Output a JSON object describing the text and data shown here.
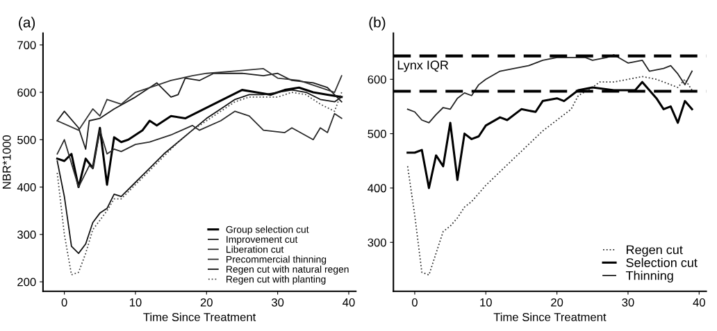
{
  "chart_data": [
    {
      "type": "line",
      "title": "(a)",
      "xlabel": "Time Since Treatment",
      "ylabel": "NBR*1000",
      "xlim": [
        -3,
        41
      ],
      "xticks": [
        0,
        10,
        20,
        30,
        40
      ],
      "ylim": [
        180,
        725
      ],
      "yticks": [
        200,
        300,
        400,
        500,
        600,
        700
      ],
      "grid": false,
      "legend": "bottom right",
      "marker": "none",
      "series": [
        {
          "name": "Group selection cut",
          "color": "#000000",
          "line_style": "solid",
          "x": [
            -1,
            0,
            1,
            2,
            3,
            4,
            5,
            6,
            7,
            8,
            9,
            11,
            12,
            13,
            15,
            17,
            19,
            21,
            23,
            25,
            27,
            29,
            31,
            33,
            35,
            37,
            39
          ],
          "values": [
            460,
            455,
            470,
            400,
            460,
            440,
            525,
            405,
            505,
            495,
            500,
            520,
            540,
            530,
            550,
            545,
            560,
            575,
            590,
            605,
            600,
            595,
            605,
            610,
            600,
            595,
            590
          ]
        },
        {
          "name": "Improvement cut",
          "color": "#1a1a1a",
          "line_style": "solid",
          "x": [
            -1,
            0,
            2,
            3,
            3.5,
            5,
            7,
            10,
            13,
            15,
            16,
            17,
            19,
            21,
            25,
            28,
            30,
            32,
            35,
            37,
            39
          ],
          "values": [
            540,
            560,
            525,
            480,
            540,
            545,
            565,
            590,
            620,
            590,
            595,
            630,
            625,
            640,
            640,
            635,
            640,
            625,
            620,
            610,
            580
          ]
        },
        {
          "name": "Liberation cut",
          "color": "#2a2a2a",
          "line_style": "solid",
          "x": [
            -1,
            0,
            2,
            3.5,
            4,
            5,
            6,
            7,
            8,
            10,
            12,
            15,
            18,
            19,
            22,
            24,
            26,
            28,
            31,
            32,
            35,
            36,
            37,
            38,
            39
          ],
          "values": [
            470,
            500,
            400,
            445,
            440,
            520,
            470,
            480,
            475,
            490,
            495,
            510,
            530,
            520,
            540,
            560,
            550,
            520,
            515,
            525,
            500,
            525,
            515,
            555,
            545
          ]
        },
        {
          "name": "Precommercial thinning",
          "color": "#333333",
          "line_style": "solid",
          "x": [
            -1,
            2,
            4,
            5,
            6,
            8,
            10,
            13,
            15,
            18,
            20,
            24,
            28,
            30,
            33,
            36,
            38,
            39
          ],
          "values": [
            540,
            520,
            565,
            550,
            585,
            575,
            600,
            615,
            625,
            635,
            640,
            645,
            650,
            630,
            625,
            610,
            600,
            635
          ]
        },
        {
          "name": "Regen cut with natural regen",
          "color": "#111111",
          "line_style": "solid",
          "x": [
            -1,
            0,
            1,
            2,
            3,
            4,
            5,
            6,
            7,
            8,
            10,
            12,
            14,
            16,
            18,
            20,
            22,
            24,
            26,
            28,
            30,
            32,
            34,
            36,
            38,
            39
          ],
          "values": [
            455,
            380,
            275,
            260,
            280,
            325,
            345,
            355,
            385,
            380,
            410,
            440,
            470,
            495,
            520,
            545,
            565,
            585,
            595,
            595,
            600,
            605,
            600,
            585,
            580,
            590
          ]
        },
        {
          "name": "Regen cut with planting",
          "color": "#444444",
          "line_style": "dotted",
          "x": [
            -1,
            0,
            1,
            2,
            3,
            4,
            5,
            6,
            7,
            8,
            10,
            12,
            14,
            16,
            18,
            20,
            22,
            24,
            26,
            28,
            30,
            32,
            34,
            36,
            38,
            39
          ],
          "values": [
            430,
            300,
            215,
            220,
            260,
            310,
            330,
            350,
            375,
            375,
            405,
            435,
            465,
            495,
            520,
            540,
            560,
            580,
            590,
            590,
            590,
            600,
            595,
            575,
            560,
            600
          ]
        }
      ]
    },
    {
      "type": "line",
      "title": "(b)",
      "xlabel": "Time Since Treatment",
      "xlim": [
        -3,
        41
      ],
      "xticks": [
        0,
        10,
        20,
        30,
        40
      ],
      "ylim": [
        210,
        685
      ],
      "yticks": [
        300,
        400,
        500,
        600
      ],
      "grid": false,
      "legend": "bottom right",
      "marker": "none",
      "ref_lines": [
        {
          "axis": "y",
          "value": 643,
          "label": "Lynx IQR",
          "color": "#000000",
          "line_style": "dashed"
        },
        {
          "axis": "y",
          "value": 578,
          "color": "#000000",
          "line_style": "dashed"
        }
      ],
      "series": [
        {
          "name": "Regen cut",
          "color": "#333333",
          "line_style": "dotted",
          "x": [
            -1,
            0,
            1,
            2,
            3,
            4,
            5,
            6,
            7,
            8,
            9,
            10,
            12,
            14,
            16,
            18,
            20,
            22,
            23,
            25,
            26,
            28,
            30,
            32,
            34,
            36,
            37,
            38,
            39
          ],
          "values": [
            440,
            350,
            245,
            240,
            280,
            320,
            330,
            345,
            365,
            375,
            390,
            405,
            430,
            455,
            480,
            505,
            525,
            545,
            570,
            585,
            595,
            595,
            600,
            605,
            600,
            590,
            585,
            600,
            580
          ]
        },
        {
          "name": "Selection cut",
          "color": "#000000",
          "line_style": "solid",
          "x": [
            -1,
            0,
            1,
            2,
            3,
            4,
            5,
            6,
            7,
            8,
            9,
            10,
            12,
            13,
            15,
            17,
            18,
            20,
            21,
            23,
            25,
            28,
            31,
            32,
            33,
            34,
            35,
            36,
            37,
            38,
            39
          ],
          "values": [
            465,
            465,
            470,
            400,
            460,
            440,
            520,
            415,
            500,
            490,
            495,
            515,
            530,
            525,
            545,
            540,
            560,
            565,
            560,
            580,
            585,
            580,
            580,
            595,
            580,
            565,
            545,
            550,
            520,
            560,
            545
          ]
        },
        {
          "name": "Thinning",
          "color": "#222222",
          "line_style": "solid",
          "x": [
            -1,
            0,
            1,
            2,
            3,
            4,
            5,
            6,
            7,
            8,
            9,
            10,
            12,
            14,
            16,
            18,
            20,
            22,
            24,
            25,
            27,
            28,
            30,
            32,
            33,
            35,
            36,
            37,
            38,
            39
          ],
          "values": [
            545,
            540,
            525,
            520,
            535,
            548,
            545,
            565,
            575,
            570,
            590,
            600,
            615,
            620,
            625,
            635,
            640,
            640,
            640,
            635,
            640,
            645,
            630,
            635,
            615,
            620,
            625,
            610,
            590,
            615
          ]
        }
      ]
    }
  ]
}
